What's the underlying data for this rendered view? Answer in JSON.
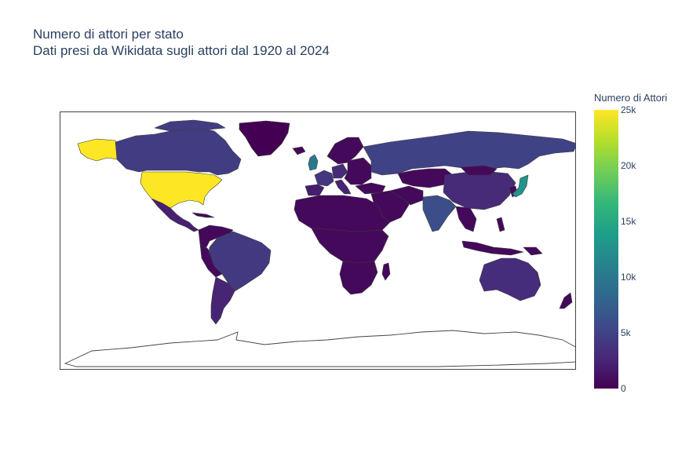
{
  "title": {
    "line1": "Numero di attori per stato",
    "line2": "Dati presi da Wikidata sugli attori dal 1920 al 2024"
  },
  "colorbar": {
    "title": "Numero di Attori",
    "colorscale": "viridis",
    "range": [
      0,
      25000
    ],
    "ticks": [
      {
        "value": 25000,
        "label": "25k"
      },
      {
        "value": 20000,
        "label": "20k"
      },
      {
        "value": 15000,
        "label": "15k"
      },
      {
        "value": 10000,
        "label": "10k"
      },
      {
        "value": 5000,
        "label": "5k"
      },
      {
        "value": 0,
        "label": "0"
      }
    ]
  },
  "chart_data": {
    "type": "choropleth",
    "projection": "equirectangular",
    "title": "Numero di attori per stato",
    "subtitle": "Dati presi da Wikidata sugli attori dal 1920 al 2024",
    "colorbar_title": "Numero di Attori",
    "zrange": [
      0,
      25000
    ],
    "countries": [
      {
        "name": "United States",
        "value": 25000
      },
      {
        "name": "Japan",
        "value": 13000
      },
      {
        "name": "United Kingdom",
        "value": 10000
      },
      {
        "name": "India",
        "value": 6000
      },
      {
        "name": "Russia",
        "value": 5000
      },
      {
        "name": "Canada",
        "value": 4500
      },
      {
        "name": "Brazil",
        "value": 4200
      },
      {
        "name": "France",
        "value": 4000
      },
      {
        "name": "Australia",
        "value": 3200
      },
      {
        "name": "China",
        "value": 3000
      },
      {
        "name": "Argentina",
        "value": 2500
      },
      {
        "name": "Mexico",
        "value": 2200
      },
      {
        "name": "Spain",
        "value": 2000
      },
      {
        "name": "Italy",
        "value": 2500
      },
      {
        "name": "Germany",
        "value": 3000
      },
      {
        "name": "Greenland",
        "value": 0
      }
    ]
  }
}
